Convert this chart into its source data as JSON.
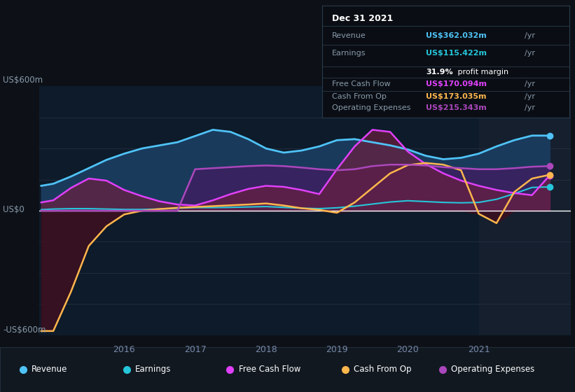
{
  "bg_color": "#0d1117",
  "plot_bg": "#0d1b2a",
  "ylim": [
    -600,
    600
  ],
  "xlim": [
    2014.8,
    2022.3
  ],
  "years": [
    2014.83,
    2015.0,
    2015.25,
    2015.5,
    2015.75,
    2016.0,
    2016.25,
    2016.5,
    2016.75,
    2017.0,
    2017.25,
    2017.5,
    2017.75,
    2018.0,
    2018.25,
    2018.5,
    2018.75,
    2019.0,
    2019.25,
    2019.5,
    2019.75,
    2020.0,
    2020.25,
    2020.5,
    2020.75,
    2021.0,
    2021.25,
    2021.5,
    2021.75,
    2022.0
  ],
  "revenue": [
    120,
    130,
    165,
    205,
    245,
    275,
    300,
    315,
    330,
    360,
    390,
    380,
    345,
    300,
    280,
    290,
    310,
    340,
    345,
    330,
    315,
    295,
    265,
    248,
    255,
    275,
    310,
    340,
    362,
    362
  ],
  "earnings": [
    5,
    8,
    10,
    10,
    8,
    6,
    6,
    8,
    12,
    15,
    15,
    16,
    18,
    20,
    16,
    12,
    10,
    14,
    22,
    32,
    42,
    48,
    44,
    40,
    38,
    40,
    55,
    82,
    112,
    115
  ],
  "free_cash_flow": [
    40,
    50,
    110,
    155,
    145,
    100,
    70,
    45,
    30,
    25,
    50,
    80,
    105,
    120,
    115,
    100,
    80,
    200,
    310,
    390,
    380,
    285,
    225,
    180,
    145,
    120,
    100,
    85,
    75,
    170
  ],
  "cash_from_op": [
    -580,
    -580,
    -390,
    -170,
    -75,
    -18,
    0,
    8,
    14,
    18,
    22,
    26,
    30,
    35,
    25,
    12,
    4,
    -10,
    40,
    110,
    180,
    220,
    230,
    222,
    195,
    -15,
    -60,
    90,
    155,
    173
  ],
  "operating_expenses": [
    0,
    0,
    0,
    0,
    0,
    0,
    0,
    0,
    0,
    200,
    205,
    210,
    215,
    218,
    215,
    208,
    200,
    195,
    200,
    215,
    222,
    222,
    218,
    210,
    205,
    200,
    200,
    205,
    212,
    215
  ],
  "revenue_color": "#4fc3f7",
  "earnings_color": "#26c6da",
  "free_cash_flow_color": "#e040fb",
  "cash_from_op_color": "#ffb74d",
  "operating_expenses_color": "#ab47bc",
  "revenue_fill": "#1a3a5c",
  "opex_fill": "#3d2060",
  "fcf_fill": "#6a2040",
  "neg_fill": "#3a1020",
  "highlight_start": 2021.0,
  "highlight_end": 2022.3,
  "highlight_color": "#151f2e",
  "tick_years": [
    2016,
    2017,
    2018,
    2019,
    2020,
    2021
  ],
  "ylabel_top": "US$600m",
  "ylabel_zero": "US$0",
  "ylabel_bottom": "-US$600m",
  "tooltip": {
    "date": "Dec 31 2021",
    "rows": [
      {
        "label": "Revenue",
        "value": "US$362.032m",
        "unit": "/yr",
        "color": "#4fc3f7",
        "bold_label": false
      },
      {
        "label": "Earnings",
        "value": "US$115.422m",
        "unit": "/yr",
        "color": "#26c6da",
        "bold_label": false
      },
      {
        "label": "",
        "value": "31.9%",
        "unit": " profit margin",
        "color": "#ffffff",
        "bold_label": true
      },
      {
        "label": "Free Cash Flow",
        "value": "US$170.094m",
        "unit": "/yr",
        "color": "#e040fb",
        "bold_label": false
      },
      {
        "label": "Cash From Op",
        "value": "US$173.035m",
        "unit": "/yr",
        "color": "#ffb74d",
        "bold_label": false
      },
      {
        "label": "Operating Expenses",
        "value": "US$215.343m",
        "unit": "/yr",
        "color": "#ab47bc",
        "bold_label": false
      }
    ]
  },
  "legend": [
    {
      "label": "Revenue",
      "color": "#4fc3f7"
    },
    {
      "label": "Earnings",
      "color": "#26c6da"
    },
    {
      "label": "Free Cash Flow",
      "color": "#e040fb"
    },
    {
      "label": "Cash From Op",
      "color": "#ffb74d"
    },
    {
      "label": "Operating Expenses",
      "color": "#ab47bc"
    }
  ]
}
